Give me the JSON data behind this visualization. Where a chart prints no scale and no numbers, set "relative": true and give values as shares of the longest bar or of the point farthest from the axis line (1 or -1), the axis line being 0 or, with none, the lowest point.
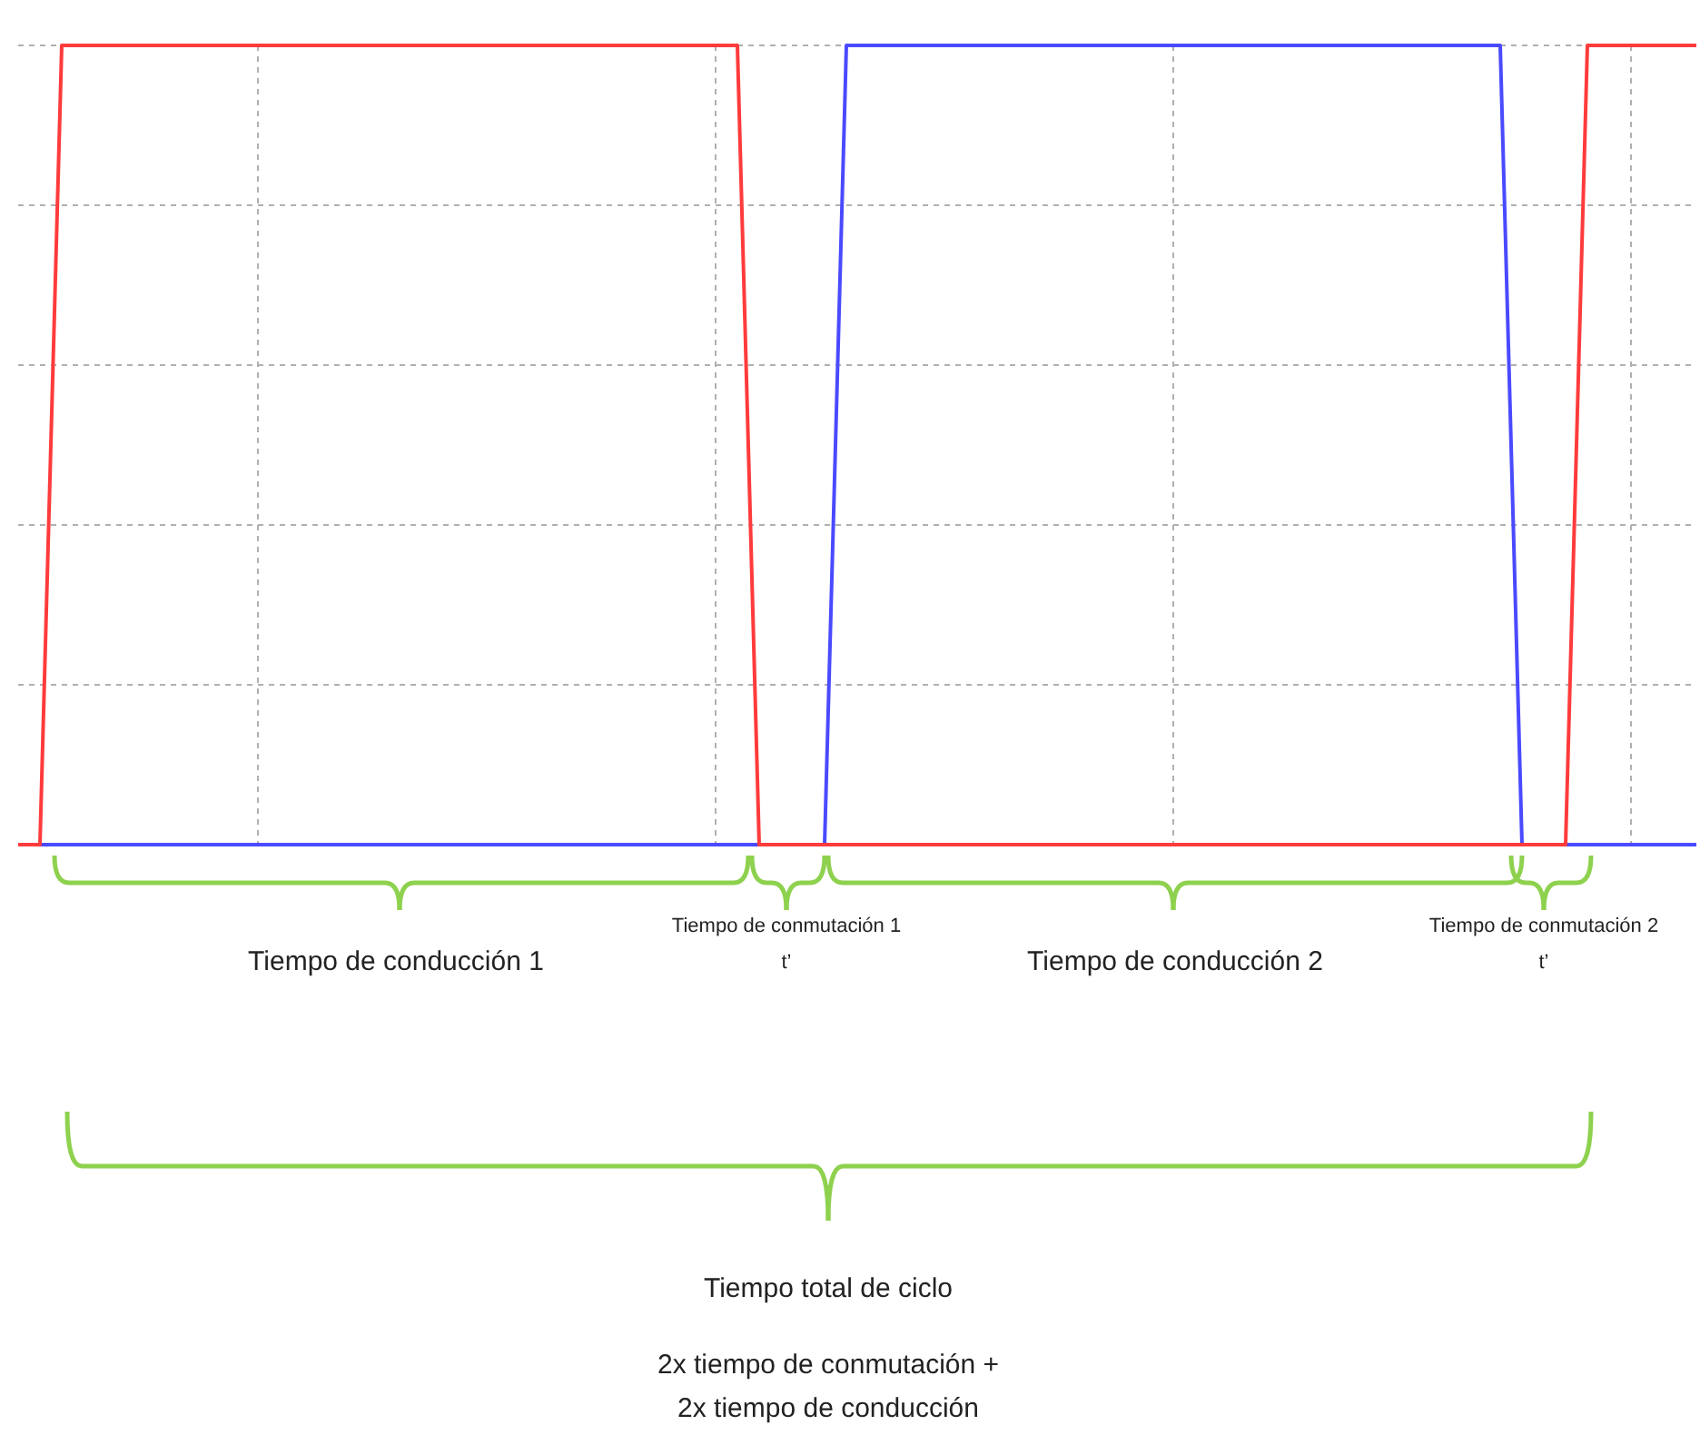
{
  "chart_data": {
    "type": "line",
    "relative": true,
    "grid": true,
    "legend": false,
    "marker": "none",
    "line_style": "solid",
    "categories": [
      null,
      null,
      null,
      null,
      null,
      null,
      null,
      null,
      null,
      null,
      null,
      null,
      null,
      null,
      null,
      null,
      null,
      null,
      null,
      null,
      null,
      null,
      null,
      null,
      null,
      null,
      null,
      null,
      null,
      null,
      null,
      null,
      null,
      null,
      null,
      null,
      null,
      null,
      null,
      null,
      null,
      null,
      null,
      null,
      null,
      null,
      null,
      null,
      null,
      null,
      null,
      null,
      null,
      null,
      null,
      null,
      null,
      null,
      null,
      null,
      null,
      null,
      null,
      null,
      null,
      null,
      null,
      null,
      null,
      null,
      null,
      null,
      null,
      null,
      null,
      null,
      null,
      null
    ],
    "series": [
      {
        "color": "#ff3b3b",
        "values": [
          0,
          0,
          1,
          1,
          1,
          1,
          1,
          1,
          1,
          1,
          1,
          1,
          1,
          1,
          1,
          1,
          1,
          1,
          1,
          1,
          1,
          1,
          1,
          1,
          1,
          1,
          1,
          1,
          1,
          1,
          1,
          1,
          1,
          1,
          0,
          0,
          0,
          0,
          0,
          0,
          0,
          0,
          0,
          0,
          0,
          0,
          0,
          0,
          0,
          0,
          0,
          0,
          0,
          0,
          0,
          0,
          0,
          0,
          0,
          0,
          0,
          0,
          0,
          0,
          0,
          0,
          0,
          0,
          0,
          0,
          0,
          0,
          1,
          1,
          1,
          1,
          1,
          1
        ]
      },
      {
        "color": "#4a4aff",
        "values": [
          0,
          0,
          0,
          0,
          0,
          0,
          0,
          0,
          0,
          0,
          0,
          0,
          0,
          0,
          0,
          0,
          0,
          0,
          0,
          0,
          0,
          0,
          0,
          0,
          0,
          0,
          0,
          0,
          0,
          0,
          0,
          0,
          0,
          0,
          0,
          0,
          0,
          0,
          1,
          1,
          1,
          1,
          1,
          1,
          1,
          1,
          1,
          1,
          1,
          1,
          1,
          1,
          1,
          1,
          1,
          1,
          1,
          1,
          1,
          1,
          1,
          1,
          1,
          1,
          1,
          1,
          1,
          1,
          1,
          0,
          0,
          0,
          0,
          0,
          0,
          0,
          0,
          0
        ]
      }
    ],
    "annotations": [
      "Tiempo de conducción 1",
      "Tiempo de conmutación 1",
      "t’",
      "Tiempo de conducción 2",
      "Tiempo de conmutación 2",
      "t’",
      "Tiempo total de ciclo",
      "2x tiempo de conmutación +\n2x tiempo de conducción"
    ]
  }
}
